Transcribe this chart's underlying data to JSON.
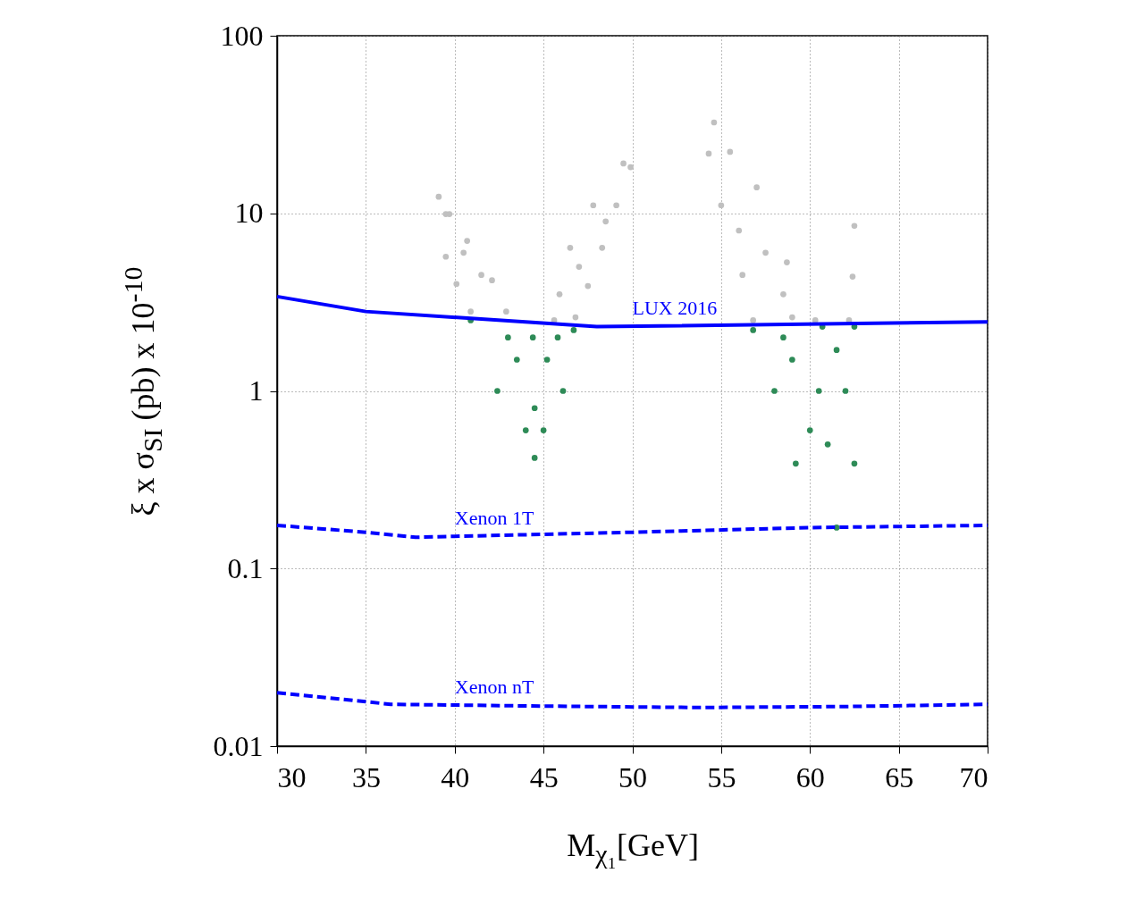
{
  "chart_data": {
    "type": "scatter",
    "xlabel": "M$_{χ₁}$[GeV]",
    "ylabel": "ξ x σ$_{SI}$ (pb) x 10$^{-10}$",
    "xlim": [
      30,
      70
    ],
    "xticks": [
      30,
      35,
      40,
      45,
      50,
      55,
      60,
      65,
      70
    ],
    "ylim": [
      0.01,
      100
    ],
    "yticks": [
      0.01,
      0.1,
      1,
      10,
      100
    ],
    "log": true,
    "grid": true,
    "series": [
      {
        "marker": "circle",
        "color": "#c0c0c0",
        "x": [
          39.1,
          39.5,
          39.7,
          39.5,
          40.7,
          40.1,
          42.1,
          40.9,
          42.9,
          40.5,
          41.5,
          49.9,
          49.5,
          49.1,
          47.8,
          48.3,
          46.5,
          47.5,
          45.9,
          46.8,
          45.6,
          48.5,
          47.0,
          54.6,
          54.3,
          55.5,
          55.0,
          57.0,
          56.2,
          58.7,
          56.8,
          60.3,
          62.5,
          62.4,
          62.2,
          56.0,
          57.5,
          58.5,
          59.0
        ],
        "values": [
          12.4,
          9.9,
          9.9,
          5.7,
          7.0,
          4.0,
          4.2,
          2.8,
          2.8,
          6.0,
          4.5,
          18.2,
          19.1,
          11.1,
          11.1,
          6.4,
          6.4,
          3.9,
          3.5,
          2.6,
          2.5,
          9.0,
          5.0,
          32.5,
          21.7,
          22.2,
          11.1,
          14.0,
          4.5,
          5.3,
          2.5,
          2.5,
          8.5,
          4.4,
          2.5,
          8.0,
          6.0,
          3.5,
          2.6
        ]
      },
      {
        "marker": "circle",
        "color": "#2e8b57",
        "x": [
          40.9,
          42.4,
          44.5,
          46.1,
          46.7,
          44.4,
          43.5,
          45.2,
          44.5,
          43.0,
          45.8,
          44.0,
          45.0,
          56.8,
          58.0,
          59.2,
          61.5,
          62.5,
          62.5,
          61.5,
          60.7,
          59.0,
          60.5,
          61.0,
          62.0,
          58.5,
          60.0
        ],
        "values": [
          2.5,
          1.0,
          0.42,
          1.0,
          2.2,
          2.0,
          1.5,
          1.5,
          0.8,
          2.0,
          2.0,
          0.6,
          0.6,
          2.2,
          1.0,
          0.39,
          0.17,
          0.39,
          2.3,
          1.7,
          2.3,
          1.5,
          1.0,
          0.5,
          1.0,
          2.0,
          0.6
        ]
      },
      {
        "type": "line",
        "name": "LUX 2016",
        "line_style": "solid",
        "color": "#0000ff",
        "x": [
          30,
          35,
          48,
          70
        ],
        "values": [
          3.4,
          2.8,
          2.3,
          2.45
        ]
      },
      {
        "type": "line",
        "name": "Xenon 1T",
        "line_style": "dashed",
        "color": "#0000ff",
        "x": [
          30,
          35,
          37.8,
          50,
          60,
          70
        ],
        "values": [
          0.175,
          0.16,
          0.15,
          0.16,
          0.17,
          0.175
        ]
      },
      {
        "type": "line",
        "name": "Xenon nT",
        "line_style": "dashed",
        "color": "#0000ff",
        "x": [
          30,
          36.4,
          45,
          53.7,
          62,
          70
        ],
        "values": [
          0.02,
          0.0172,
          0.0168,
          0.0165,
          0.0167,
          0.0172
        ]
      }
    ]
  }
}
